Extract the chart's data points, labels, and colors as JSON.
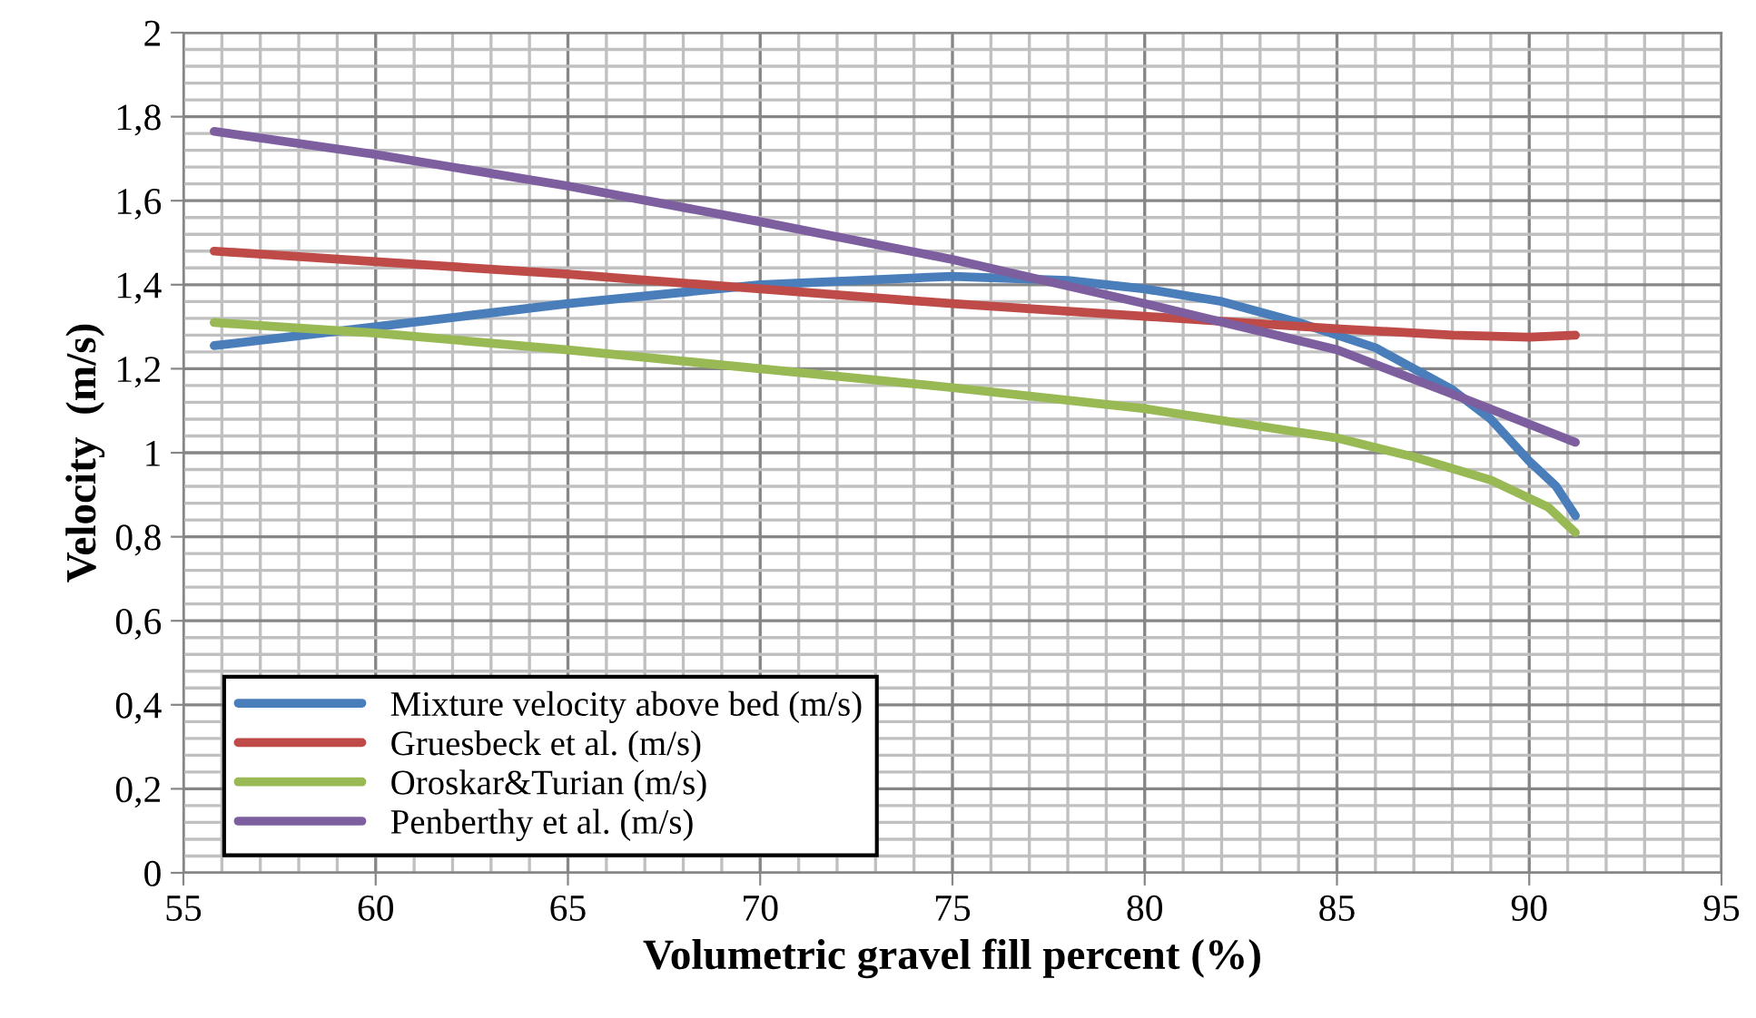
{
  "chart_data": {
    "type": "line",
    "xlabel": "Volumetric gravel fill percent (%)",
    "ylabel": "Velocity  (m/s)",
    "xlim": [
      55,
      95
    ],
    "xticks": [
      55,
      60,
      65,
      70,
      75,
      80,
      85,
      90,
      95
    ],
    "ylim": [
      0,
      2
    ],
    "yticks": [
      0,
      {
        "value": 0.2,
        "label": "0,2"
      },
      {
        "value": 0.4,
        "label": "0,4"
      },
      {
        "value": 0.6,
        "label": "0,6"
      },
      {
        "value": 0.8,
        "label": "0,8"
      },
      1,
      {
        "value": 1.2,
        "label": "1,2"
      },
      {
        "value": 1.4,
        "label": "1,4"
      },
      {
        "value": 1.6,
        "label": "1,6"
      },
      {
        "value": 1.8,
        "label": "1,8"
      },
      2
    ],
    "grid": true,
    "legend": "bottom left",
    "marker": "none",
    "line_style": "solid",
    "series": [
      {
        "name": "Mixture velocity above bed (m/s)",
        "color": "#4a7ebb",
        "x": [
          55.8,
          60,
          65,
          70,
          75,
          78,
          80,
          82,
          84,
          86,
          88,
          89,
          90,
          90.7,
          91.2
        ],
        "values": [
          1.255,
          1.3,
          1.355,
          1.4,
          1.42,
          1.41,
          1.39,
          1.36,
          1.31,
          1.25,
          1.15,
          1.08,
          0.98,
          0.92,
          0.85
        ]
      },
      {
        "name": "Gruesbeck et al. (m/s)",
        "color": "#be4b48",
        "x": [
          55.8,
          60,
          65,
          70,
          75,
          80,
          85,
          88,
          90,
          91.2
        ],
        "values": [
          1.48,
          1.455,
          1.425,
          1.39,
          1.355,
          1.325,
          1.295,
          1.28,
          1.275,
          1.28
        ]
      },
      {
        "name": "Oroskar&Turian (m/s)",
        "color": "#98b954",
        "x": [
          55.8,
          60,
          65,
          70,
          75,
          80,
          85,
          87,
          89,
          90.5,
          91.2
        ],
        "values": [
          1.31,
          1.285,
          1.245,
          1.2,
          1.155,
          1.105,
          1.035,
          0.99,
          0.935,
          0.87,
          0.81
        ]
      },
      {
        "name": "Penberthy et al. (m/s)",
        "color": "#7d5fa0",
        "x": [
          55.8,
          60,
          65,
          70,
          75,
          80,
          85,
          88,
          91.2
        ],
        "values": [
          1.765,
          1.71,
          1.635,
          1.55,
          1.46,
          1.355,
          1.245,
          1.14,
          1.025
        ]
      }
    ]
  }
}
